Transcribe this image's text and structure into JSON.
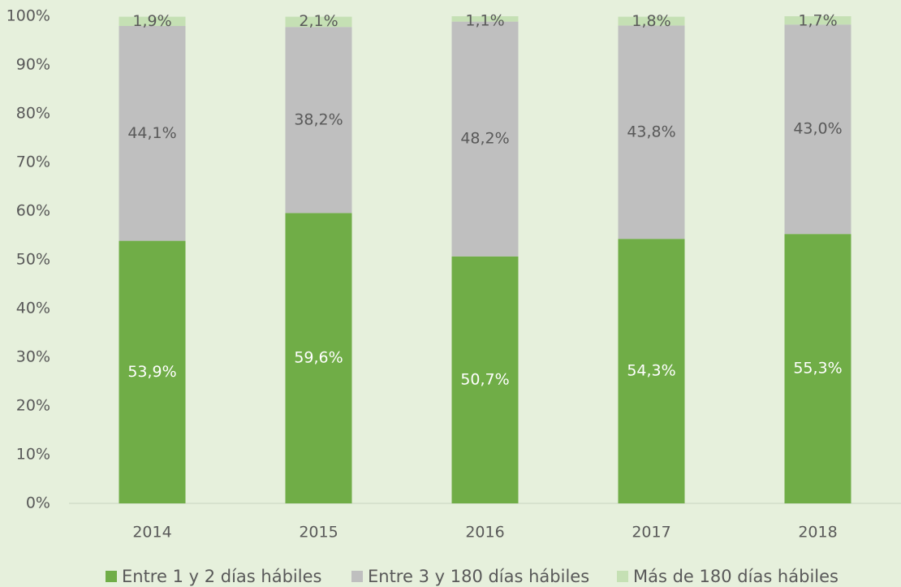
{
  "chart_data": {
    "type": "stacked_bar",
    "categories": [
      "2014",
      "2015",
      "2016",
      "2017",
      "2018"
    ],
    "series": [
      {
        "name": "Entre 1 y 2 días hábiles",
        "color": "#70ad47",
        "label_color": "#ffffff",
        "values": [
          53.9,
          59.6,
          50.7,
          54.3,
          55.3
        ],
        "value_labels": [
          "53,9%",
          "59,6%",
          "50,7%",
          "54,3%",
          "55,3%"
        ]
      },
      {
        "name": "Entre 3 y 180 días hábiles",
        "color": "#bfbfbf",
        "label_color": "#595959",
        "values": [
          44.1,
          38.2,
          48.2,
          43.8,
          43.0
        ],
        "value_labels": [
          "44,1%",
          "38,2%",
          "48,2%",
          "43,8%",
          "43,0%"
        ]
      },
      {
        "name": "Más de 180 días hábiles",
        "color": "#c5e0b4",
        "label_color": "#595959",
        "values": [
          1.9,
          2.1,
          1.1,
          1.8,
          1.7
        ],
        "value_labels": [
          "1,9%",
          "2,1%",
          "1,1%",
          "1,8%",
          "1,7%"
        ]
      }
    ],
    "ylim": [
      0,
      100
    ],
    "yticks": [
      {
        "value": 0,
        "label": "0%"
      },
      {
        "value": 10,
        "label": "10%"
      },
      {
        "value": 20,
        "label": "20%"
      },
      {
        "value": 30,
        "label": "30%"
      },
      {
        "value": 40,
        "label": "40%"
      },
      {
        "value": 50,
        "label": "50%"
      },
      {
        "value": 60,
        "label": "60%"
      },
      {
        "value": 70,
        "label": "70%"
      },
      {
        "value": 80,
        "label": "80%"
      },
      {
        "value": 90,
        "label": "90%"
      },
      {
        "value": 100,
        "label": "100%"
      }
    ],
    "grid": false,
    "legend": "bottom"
  }
}
